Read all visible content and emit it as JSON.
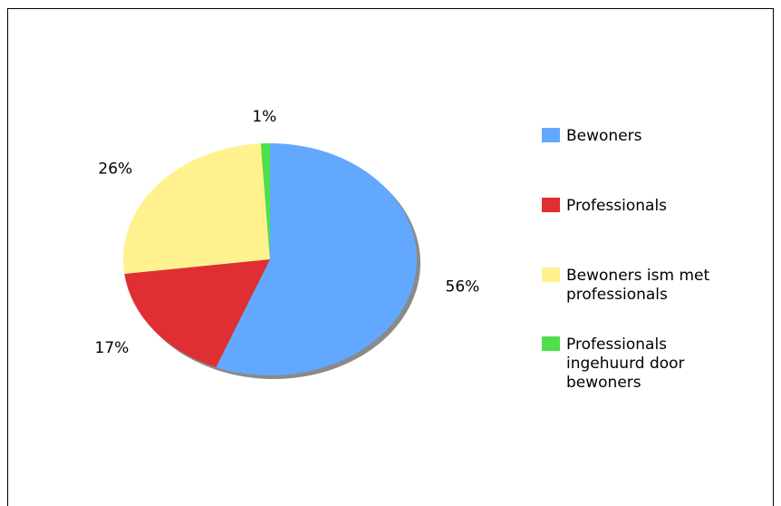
{
  "chart_data": {
    "type": "pie",
    "title": "",
    "categories": [
      "Bewoners",
      "Professionals",
      "Bewoners ism met professionals",
      "Professionals ingehuurd door bewoners"
    ],
    "values": [
      56,
      17,
      26,
      1
    ],
    "value_labels": [
      "56%",
      "17%",
      "26%",
      "1%"
    ],
    "colors": [
      "#62a8fe",
      "#df2f32",
      "#fff28e",
      "#4ddf4c"
    ],
    "legend_position": "right",
    "legend_lines": [
      [
        "Bewoners"
      ],
      [
        "Professionals"
      ],
      [
        "Bewoners ism met",
        "professionals"
      ],
      [
        "Professionals",
        "ingehuurd door",
        "bewoners"
      ]
    ]
  }
}
